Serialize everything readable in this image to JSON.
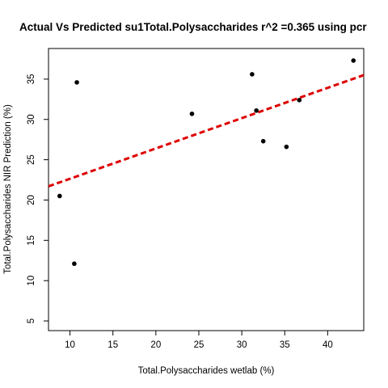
{
  "chart_data": {
    "type": "scatter",
    "title": "Actual Vs Predicted su1Total.Polysaccharides r^2 =0.365 using pcr",
    "xlabel": "Total.Polysaccharides wetlab (%)",
    "ylabel": "Total.Polysaccharides NIR Prediction (%)",
    "xlim": [
      7.5,
      44.2
    ],
    "ylim": [
      3.8,
      38.8
    ],
    "x_ticks": [
      10,
      15,
      20,
      25,
      30,
      35,
      40
    ],
    "y_ticks": [
      5,
      10,
      15,
      20,
      25,
      30,
      35
    ],
    "grid": false,
    "points": [
      {
        "x": 8.8,
        "y": 20.5
      },
      {
        "x": 10.5,
        "y": 12.1
      },
      {
        "x": 10.8,
        "y": 34.6
      },
      {
        "x": 24.2,
        "y": 30.7
      },
      {
        "x": 31.2,
        "y": 35.6
      },
      {
        "x": 31.7,
        "y": 31.1
      },
      {
        "x": 32.5,
        "y": 27.3
      },
      {
        "x": 35.2,
        "y": 26.6
      },
      {
        "x": 36.7,
        "y": 32.4
      },
      {
        "x": 43.0,
        "y": 37.3
      }
    ],
    "fit_line": {
      "x": [
        7.5,
        44.2
      ],
      "y": [
        21.7,
        35.5
      ],
      "color": "#dd0000",
      "style": "dashed"
    },
    "point_color": "#000000"
  }
}
